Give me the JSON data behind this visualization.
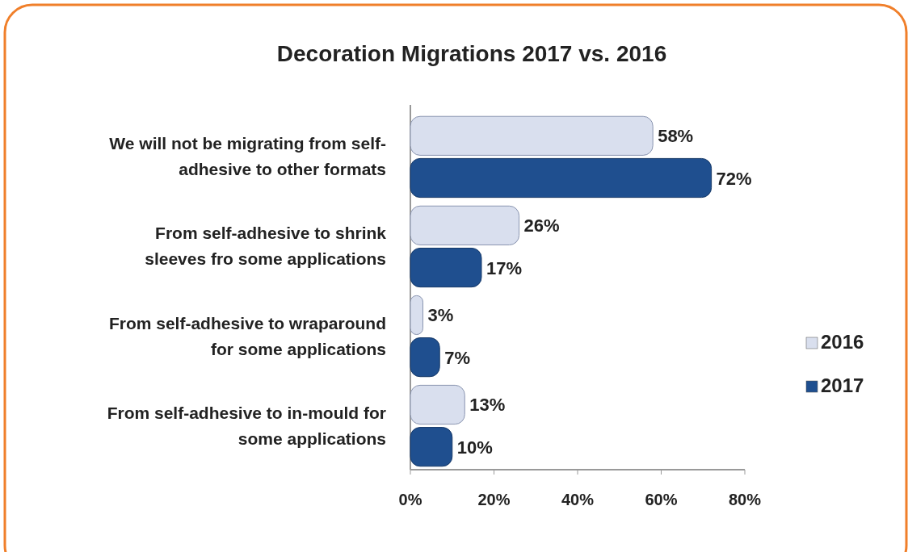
{
  "chart_data": {
    "type": "bar",
    "orientation": "horizontal",
    "title": "Decoration Migrations 2017 vs. 2016",
    "categories": [
      "We will not be migrating from self-adhesive to other formats",
      "From self-adhesive to shrink sleeves fro some applications",
      "From self-adhesive to wraparound for some applications",
      "From self-adhesive to in-mould for some applications"
    ],
    "series": [
      {
        "name": "2016",
        "color": "#d9dfee",
        "values": [
          58,
          26,
          3,
          13
        ],
        "value_labels": [
          "58%",
          "26%",
          "3%",
          "13%"
        ]
      },
      {
        "name": "2017",
        "color": "#1f4f8f",
        "values": [
          72,
          17,
          7,
          10
        ],
        "value_labels": [
          "72%",
          "17%",
          "7%",
          "10%"
        ]
      }
    ],
    "xlim": [
      0,
      80
    ],
    "xticks": [
      {
        "value": 0,
        "label": "0%"
      },
      {
        "value": 20,
        "label": "20%"
      },
      {
        "value": 40,
        "label": "40%"
      },
      {
        "value": 60,
        "label": "60%"
      },
      {
        "value": 80,
        "label": "80%"
      }
    ],
    "legend": "right",
    "grid": false
  }
}
